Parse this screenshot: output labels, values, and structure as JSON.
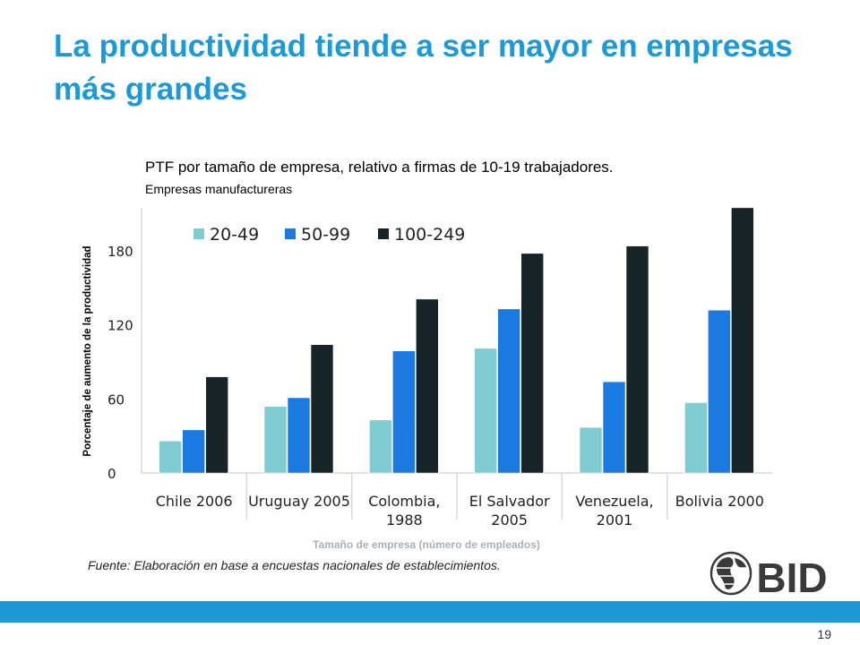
{
  "slide": {
    "title": "La productividad tiende a ser mayor en empresas más grandes",
    "subtitle": "PTF por tamaño de empresa, relativo a firmas de 10-19 trabajadores.",
    "subtitle2": "Empresas manufactureras",
    "source": "Fuente: Elaboración en base a encuestas nacionales de establecimientos.",
    "page_number": "19",
    "logo_text": "BID"
  },
  "colors": {
    "title": "#1a9ad6",
    "bar_bar": "#1d9ad6",
    "series": [
      "#7fcdd3",
      "#1a7ae0",
      "#172528"
    ]
  },
  "chart_data": {
    "type": "bar",
    "title": "",
    "xlabel": "Tamaño de empresa (número de empleados)",
    "ylabel": "Porcentaje de aumento de la productividad",
    "ylim": [
      0,
      212
    ],
    "yticks": [
      0,
      60,
      120,
      180
    ],
    "categories": [
      "Chile 2006",
      "Uruguay 2005",
      "Colombia, 1988",
      "El Salvador 2005",
      "Venezuela, 2001",
      "Bolivia 2000"
    ],
    "category_lines": [
      [
        "Chile 2006"
      ],
      [
        "Uruguay 2005"
      ],
      [
        "Colombia,",
        "1988"
      ],
      [
        "El Salvador",
        "2005"
      ],
      [
        "Venezuela,",
        "2001"
      ],
      [
        "Bolivia 2000"
      ]
    ],
    "series": [
      {
        "name": "20-49",
        "values": [
          26,
          54,
          43,
          101,
          37,
          57
        ]
      },
      {
        "name": "50-99",
        "values": [
          35,
          61,
          99,
          133,
          74,
          132
        ]
      },
      {
        "name": "100-249",
        "values": [
          78,
          104,
          141,
          178,
          184,
          215
        ]
      }
    ],
    "legend": "top",
    "grid": false
  }
}
